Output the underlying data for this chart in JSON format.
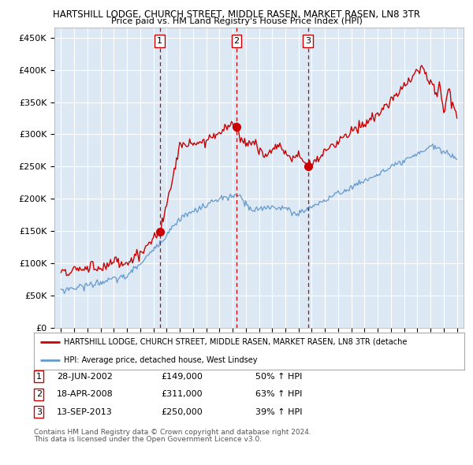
{
  "title_line1": "HARTSHILL LODGE, CHURCH STREET, MIDDLE RASEN, MARKET RASEN, LN8 3TR",
  "title_line2": "Price paid vs. HM Land Registry's House Price Index (HPI)",
  "hpi_label": "HPI: Average price, detached house, West Lindsey",
  "property_label": "HARTSHILL LODGE, CHURCH STREET, MIDDLE RASEN, MARKET RASEN, LN8 3TR (detache",
  "sales": [
    {
      "num": 1,
      "date_label": "28-JUN-2002",
      "date_year": 2002.49,
      "price": 149000,
      "pct": "50%",
      "dir": "↑"
    },
    {
      "num": 2,
      "date_label": "18-APR-2008",
      "date_year": 2008.29,
      "price": 311000,
      "pct": "63%",
      "dir": "↑"
    },
    {
      "num": 3,
      "date_label": "13-SEP-2013",
      "date_year": 2013.71,
      "price": 250000,
      "pct": "39%",
      "dir": "↑"
    }
  ],
  "ylabel_ticks": [
    "£0",
    "£50K",
    "£100K",
    "£150K",
    "£200K",
    "£250K",
    "£300K",
    "£350K",
    "£400K",
    "£450K"
  ],
  "ytick_values": [
    0,
    50000,
    100000,
    150000,
    200000,
    250000,
    300000,
    350000,
    400000,
    450000
  ],
  "xlim": [
    1994.5,
    2025.5
  ],
  "ylim": [
    0,
    465000
  ],
  "plot_bg": "#dce9f5",
  "grid_color": "#ffffff",
  "red_line_color": "#cc0000",
  "blue_line_color": "#6699cc",
  "footnote1": "Contains HM Land Registry data © Crown copyright and database right 2024.",
  "footnote2": "This data is licensed under the Open Government Licence v3.0."
}
